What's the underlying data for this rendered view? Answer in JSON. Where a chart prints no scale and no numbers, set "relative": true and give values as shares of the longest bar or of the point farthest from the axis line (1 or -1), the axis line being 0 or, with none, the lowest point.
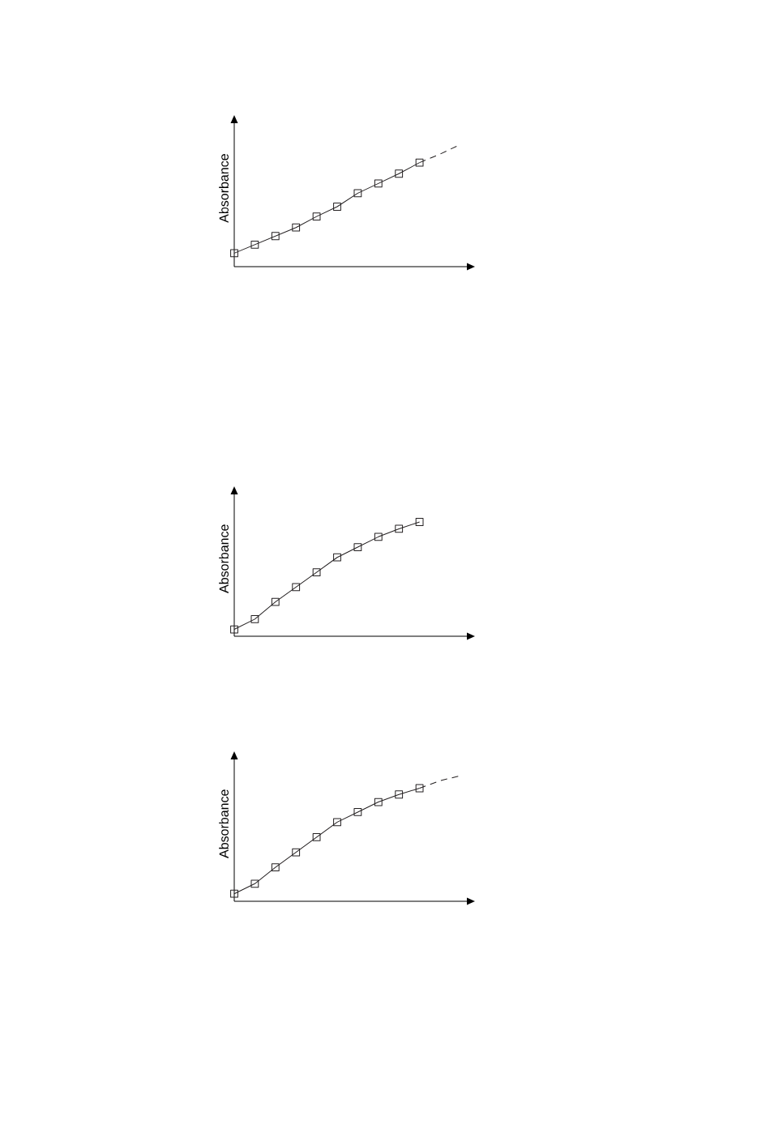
{
  "chart_data": [
    {
      "type": "line",
      "relative": true,
      "ylabel": "Absorbance",
      "categories": [
        null,
        null,
        null,
        null,
        null,
        null,
        null,
        null,
        null,
        null,
        null,
        null
      ],
      "series": [
        {
          "color": "#231f20",
          "marker": "square",
          "line_style": "solid",
          "values": [
            0.11,
            0.18,
            0.25,
            0.32,
            0.41,
            0.49,
            0.6,
            0.68,
            0.76,
            0.85,
            null,
            null
          ]
        },
        {
          "color": "#231f20",
          "marker": "none",
          "line_style": "dashed",
          "values": [
            null,
            null,
            null,
            null,
            null,
            null,
            null,
            null,
            null,
            0.85,
            0.92,
            1.0
          ]
        }
      ]
    },
    {
      "type": "line",
      "relative": true,
      "ylabel": "Absorbance",
      "categories": [
        null,
        null,
        null,
        null,
        null,
        null,
        null,
        null,
        null,
        null
      ],
      "series": [
        {
          "color": "#231f20",
          "marker": "square",
          "line_style": "solid",
          "values": [
            0.06,
            0.15,
            0.3,
            0.43,
            0.56,
            0.69,
            0.78,
            0.87,
            0.94,
            1.0
          ]
        }
      ]
    },
    {
      "type": "line",
      "relative": true,
      "ylabel": "Absorbance",
      "categories": [
        null,
        null,
        null,
        null,
        null,
        null,
        null,
        null,
        null,
        null,
        null,
        null
      ],
      "series": [
        {
          "color": "#231f20",
          "marker": "square",
          "line_style": "solid",
          "values": [
            0.06,
            0.14,
            0.27,
            0.39,
            0.51,
            0.63,
            0.71,
            0.79,
            0.85,
            0.9,
            null,
            null
          ]
        },
        {
          "color": "#231f20",
          "marker": "none",
          "line_style": "dashed",
          "values": [
            null,
            null,
            null,
            null,
            null,
            null,
            null,
            null,
            null,
            0.9,
            0.96,
            1.0
          ]
        }
      ]
    }
  ]
}
